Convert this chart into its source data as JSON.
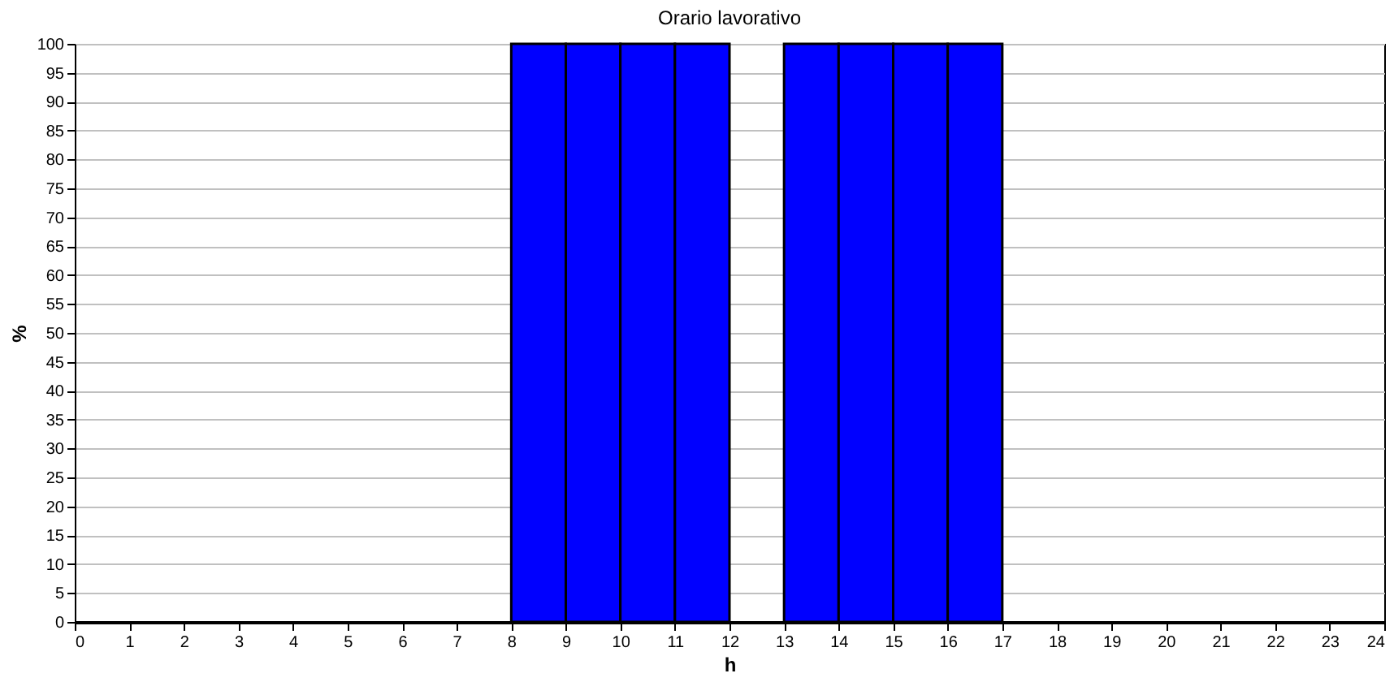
{
  "chart_data": {
    "type": "histogram",
    "title": "Orario lavorativo",
    "xlabel": "h",
    "ylabel": "%",
    "bins": [
      0,
      1,
      2,
      3,
      4,
      5,
      6,
      7,
      8,
      9,
      10,
      11,
      12,
      13,
      14,
      15,
      16,
      17,
      18,
      19,
      20,
      21,
      22,
      23,
      24
    ],
    "values": [
      0,
      0,
      0,
      0,
      0,
      0,
      0,
      0,
      100,
      100,
      100,
      100,
      0,
      100,
      100,
      100,
      100,
      0,
      0,
      0,
      0,
      0,
      0,
      0
    ],
    "color": "#0000ff",
    "xlim": [
      0,
      24
    ],
    "xticks": [
      0,
      1,
      2,
      3,
      4,
      5,
      6,
      7,
      8,
      9,
      10,
      11,
      12,
      13,
      14,
      15,
      16,
      17,
      18,
      19,
      20,
      21,
      22,
      23,
      24
    ],
    "ylim": [
      0,
      100
    ],
    "yticks": [
      0,
      5,
      10,
      15,
      20,
      25,
      30,
      35,
      40,
      45,
      50,
      55,
      60,
      65,
      70,
      75,
      80,
      85,
      90,
      95,
      100
    ],
    "grid": "y"
  }
}
